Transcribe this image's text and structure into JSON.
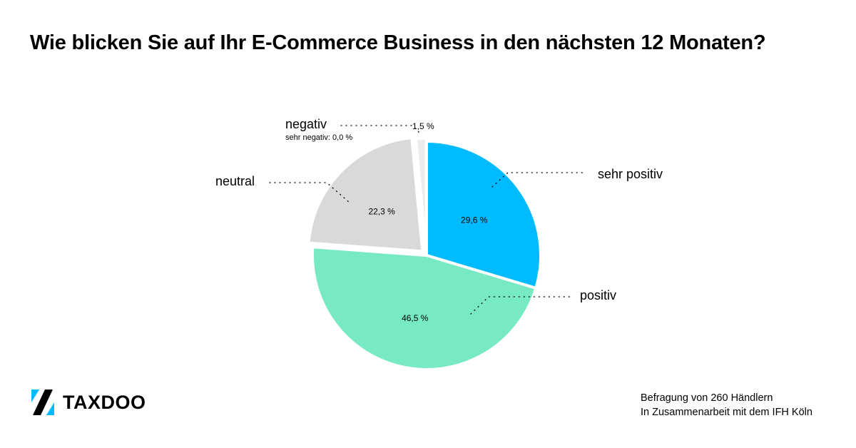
{
  "title": "Wie blicken Sie auf Ihr E-Commerce Business in den nächsten 12 Monaten?",
  "chart_data": {
    "type": "pie",
    "title": "Wie blicken Sie auf Ihr E-Commerce Business in den nächsten 12 Monaten?",
    "start": "12 o'clock, clockwise",
    "slices": [
      {
        "key": "sehr_positiv",
        "label": "sehr positiv",
        "value": 29.6,
        "value_label": "29,6 %",
        "color": "#00bbff"
      },
      {
        "key": "positiv",
        "label": "positiv",
        "value": 46.5,
        "value_label": "46,5 %",
        "color": "#78eac2"
      },
      {
        "key": "neutral",
        "label": "neutral",
        "value": 22.3,
        "value_label": "22,3 %",
        "color": "#d9d9d9"
      },
      {
        "key": "negativ",
        "label": "negativ",
        "value": 1.5,
        "value_label": "1,5 %",
        "color": "#ececec"
      },
      {
        "key": "sehr_negativ",
        "label": "sehr negativ: 0,0 %",
        "value": 0.0,
        "value_label": "",
        "color": "#ececec"
      }
    ]
  },
  "brand": {
    "name": "TAXDOO",
    "mark_colors": [
      "#00bbff",
      "#000000"
    ]
  },
  "footnote": {
    "line1": "Befragung von 260 Händlern",
    "line2": "In Zusammenarbeit mit dem IFH Köln"
  }
}
